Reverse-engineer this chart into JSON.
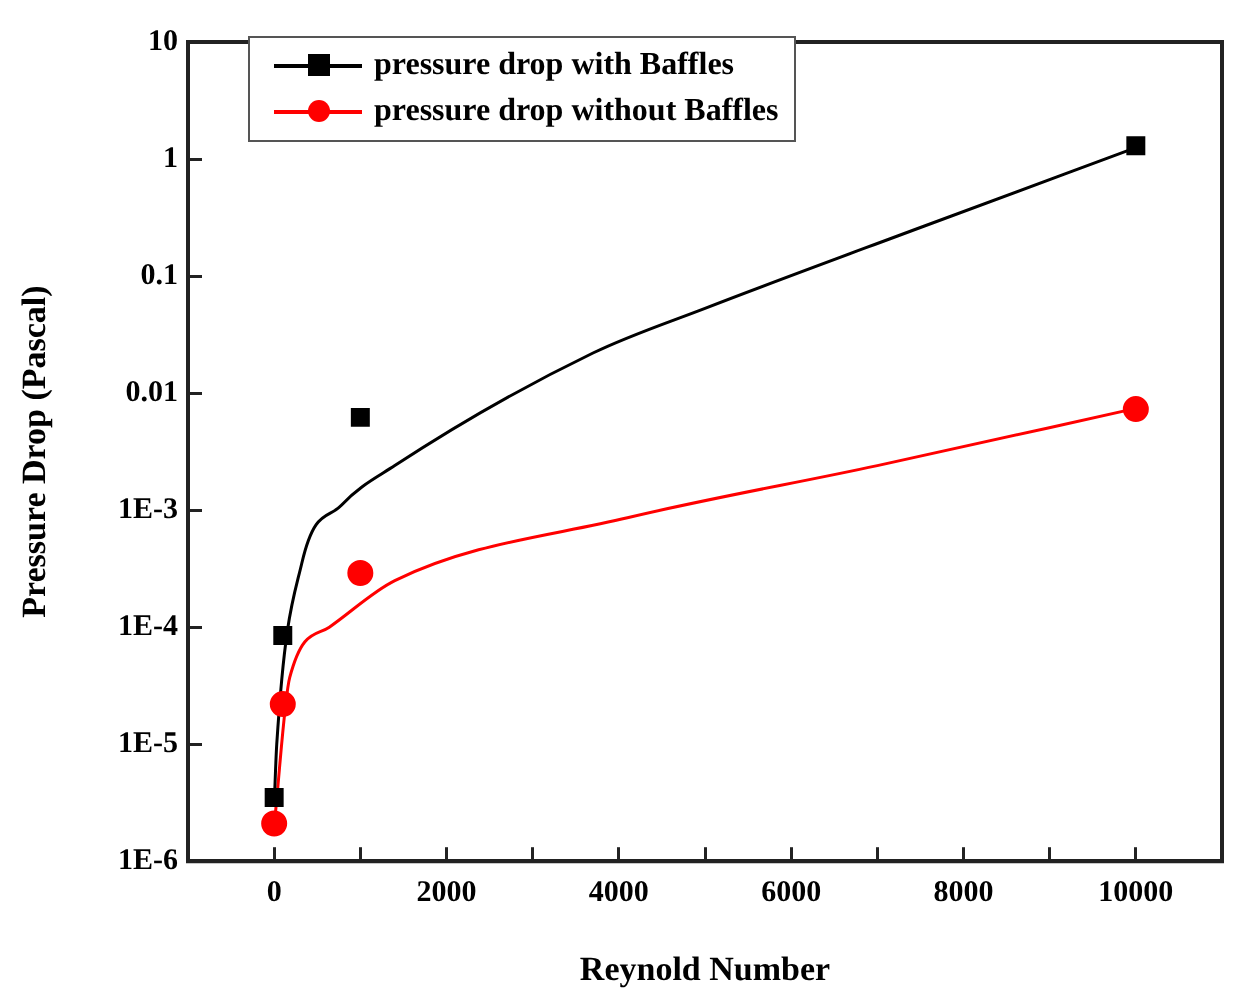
{
  "chart_data": {
    "type": "scatter",
    "xlabel": "Reynold Number",
    "ylabel": "Pressure Drop (Pascal)",
    "log": "y",
    "xlim": [
      -1000,
      11000
    ],
    "ylim": [
      1e-06,
      10
    ],
    "xticks": [
      0,
      {
        "value": 1000,
        "label": null
      },
      2000,
      {
        "value": 3000,
        "label": null
      },
      4000,
      {
        "value": 5000,
        "label": null
      },
      6000,
      {
        "value": 7000,
        "label": null
      },
      8000,
      {
        "value": 9000,
        "label": null
      },
      10000
    ],
    "yticks": [
      {
        "value": 1e-06,
        "label": "1E-6"
      },
      {
        "value": 1e-05,
        "label": "1E-5"
      },
      {
        "value": 0.0001,
        "label": "1E-4"
      },
      {
        "value": 0.001,
        "label": "1E-3"
      },
      0.01,
      0.1,
      1,
      10
    ],
    "legend": "top left",
    "grid": false,
    "series": [
      {
        "name": "pressure drop with Baffles",
        "marker": "square",
        "color": "#000000",
        "x": [
          0,
          100,
          1000,
          10000
        ],
        "values": [
          3.5e-06,
          8.5e-05,
          0.0062,
          1.3
        ]
      },
      {
        "name": "pressure drop without Baffles",
        "marker": "circle",
        "color": "#ff0000",
        "x": [
          0,
          100,
          1000,
          10000
        ],
        "values": [
          2.1e-06,
          2.2e-05,
          0.00029,
          0.0073
        ]
      },
      {
        "type": "line",
        "marker": "none",
        "color": "#000000",
        "x": [
          0,
          30,
          320,
          780,
          1400,
          3700,
          5000,
          7500,
          10000
        ],
        "values": [
          3e-06,
          1e-05,
          0.00035,
          0.0011,
          0.0024,
          0.022,
          0.053,
          0.26,
          1.25
        ]
      },
      {
        "type": "line",
        "marker": "none",
        "color": "#ff0000",
        "x": [
          0,
          180,
          640,
          1400,
          4100,
          7000,
          10000
        ],
        "values": [
          2e-06,
          3.7e-05,
          0.0001,
          0.00025,
          0.00086,
          0.0024,
          0.0074
        ]
      }
    ]
  }
}
